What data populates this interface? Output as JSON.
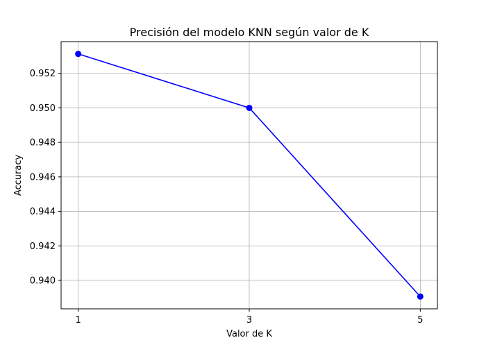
{
  "chart_data": {
    "type": "line",
    "title": "Precisión del modelo KNN según valor de K",
    "xlabel": "Valor de K",
    "ylabel": "Accuracy",
    "x": [
      1,
      3,
      5
    ],
    "series": [
      {
        "values": [
          0.95313,
          0.95,
          0.93906
        ],
        "color": "#0000ff",
        "marker": "circle"
      }
    ],
    "xticks": [
      "1",
      "3",
      "5"
    ],
    "yticks": [
      "0.940",
      "0.942",
      "0.944",
      "0.946",
      "0.948",
      "0.950",
      "0.952"
    ],
    "xlim": [
      0.8,
      5.2
    ],
    "ylim": [
      0.93835,
      0.95384
    ],
    "grid": true,
    "legend": false
  }
}
